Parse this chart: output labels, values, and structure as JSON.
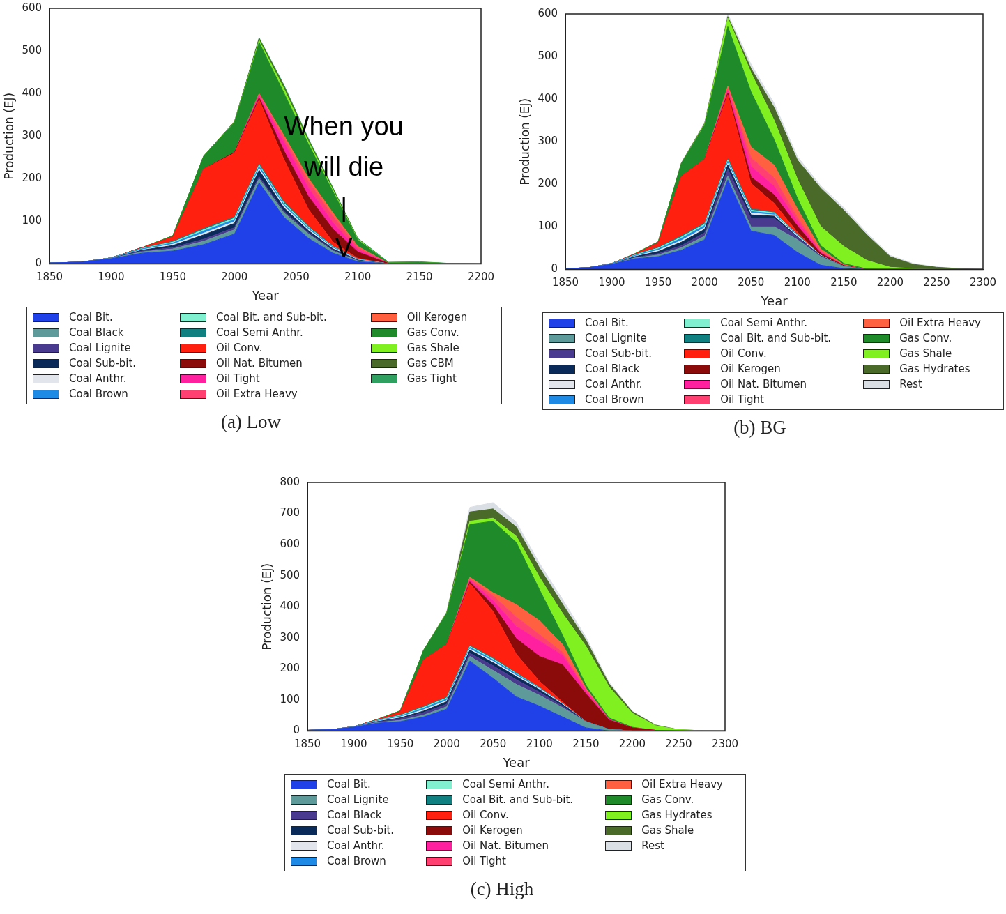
{
  "chart_data": [
    {
      "type": "area",
      "title": "(a) Low",
      "xlabel": "Year",
      "ylabel": "Production (EJ)",
      "stacked": true,
      "legend": "bottom",
      "xlim": [
        1850,
        2200
      ],
      "xticks": [
        1850,
        1900,
        1950,
        2000,
        2050,
        2100,
        2150,
        2200
      ],
      "ylim": [
        0,
        600
      ],
      "yticks": [
        0,
        100,
        200,
        300,
        400,
        500,
        600
      ],
      "annotations": [
        {
          "text": "When you\nwill die\n|\nV",
          "x": 2100,
          "y": 0
        }
      ],
      "x": [
        1850,
        1875,
        1900,
        1925,
        1950,
        1975,
        2000,
        2020,
        2040,
        2060,
        2080,
        2100,
        2125,
        2150,
        2175,
        2200
      ],
      "series": [
        {
          "name": "Coal Bit.",
          "color": "#2040e8",
          "values": [
            2,
            4,
            12,
            25,
            30,
            45,
            70,
            190,
            110,
            60,
            25,
            5,
            0,
            0,
            0,
            0
          ]
        },
        {
          "name": "Coal Black",
          "color": "#5f9a9a",
          "values": [
            0,
            0,
            1,
            3,
            5,
            8,
            10,
            10,
            10,
            10,
            5,
            2,
            0,
            0,
            0,
            0
          ]
        },
        {
          "name": "Coal Lignite",
          "color": "#4a3a8f",
          "values": [
            0,
            0,
            0,
            2,
            3,
            5,
            5,
            5,
            4,
            3,
            2,
            1,
            0,
            0,
            0,
            0
          ]
        },
        {
          "name": "Coal Sub-bit.",
          "color": "#0a2a5a",
          "values": [
            0,
            0,
            0,
            2,
            5,
            10,
            10,
            15,
            8,
            5,
            3,
            1,
            0,
            0,
            0,
            0
          ]
        },
        {
          "name": "Coal Anthr.",
          "color": "#e2e6ec",
          "values": [
            0,
            0,
            0,
            1,
            3,
            4,
            4,
            4,
            4,
            3,
            2,
            1,
            0,
            0,
            0,
            0
          ]
        },
        {
          "name": "Coal Brown",
          "color": "#1e8ae6",
          "values": [
            0,
            0,
            1,
            2,
            3,
            5,
            5,
            5,
            4,
            3,
            2,
            1,
            0,
            0,
            0,
            0
          ]
        },
        {
          "name": "Coal Bit. and Sub-bit.",
          "color": "#80f0d0",
          "values": [
            0,
            0,
            0,
            1,
            2,
            3,
            3,
            3,
            3,
            2,
            1,
            0,
            0,
            0,
            0,
            0
          ]
        },
        {
          "name": "Coal Semi Anthr.",
          "color": "#108080",
          "values": [
            0,
            0,
            0,
            1,
            2,
            3,
            3,
            3,
            3,
            2,
            1,
            0,
            0,
            0,
            0,
            0
          ]
        },
        {
          "name": "Oil Conv.",
          "color": "#ff2010",
          "values": [
            0,
            0,
            0,
            1,
            10,
            140,
            150,
            150,
            100,
            40,
            10,
            2,
            0,
            0,
            0,
            0
          ]
        },
        {
          "name": "Oil Nat. Bitumen",
          "color": "#8b0a0a",
          "values": [
            0,
            0,
            0,
            0,
            0,
            0,
            2,
            5,
            20,
            30,
            30,
            15,
            1,
            0,
            0,
            0
          ]
        },
        {
          "name": "Oil Tight",
          "color": "#ff20a0",
          "values": [
            0,
            0,
            0,
            0,
            0,
            0,
            0,
            5,
            20,
            20,
            15,
            5,
            0,
            0,
            0,
            0
          ]
        },
        {
          "name": "Oil Extra Heavy",
          "color": "#ff4070",
          "values": [
            0,
            0,
            0,
            0,
            0,
            0,
            0,
            3,
            10,
            15,
            15,
            5,
            0,
            0,
            0,
            0
          ]
        },
        {
          "name": "Oil Kerogen",
          "color": "#ff6040",
          "values": [
            0,
            0,
            0,
            0,
            0,
            0,
            0,
            2,
            6,
            8,
            8,
            3,
            0,
            0,
            0,
            0
          ]
        },
        {
          "name": "Gas Conv.",
          "color": "#1f8a2a",
          "values": [
            0,
            0,
            0,
            0,
            3,
            30,
            70,
            120,
            100,
            80,
            50,
            15,
            1,
            3,
            1,
            0
          ]
        },
        {
          "name": "Gas Shale",
          "color": "#80f020",
          "values": [
            0,
            0,
            0,
            0,
            0,
            0,
            1,
            5,
            10,
            6,
            4,
            2,
            0,
            0,
            0,
            0
          ]
        },
        {
          "name": "Gas CBM",
          "color": "#4a6a2a",
          "values": [
            0,
            0,
            0,
            0,
            0,
            0,
            1,
            4,
            6,
            4,
            3,
            1,
            0,
            0,
            0,
            0
          ]
        },
        {
          "name": "Gas Tight",
          "color": "#30a060",
          "values": [
            0,
            0,
            0,
            0,
            0,
            0,
            0,
            2,
            3,
            3,
            2,
            1,
            2,
            2,
            0,
            0
          ]
        }
      ]
    },
    {
      "type": "area",
      "title": "(b) BG",
      "xlabel": "Year",
      "ylabel": "Production (EJ)",
      "stacked": true,
      "legend": "bottom",
      "xlim": [
        1850,
        2300
      ],
      "xticks": [
        1850,
        1900,
        1950,
        2000,
        2050,
        2100,
        2150,
        2200,
        2250,
        2300
      ],
      "ylim": [
        0,
        600
      ],
      "yticks": [
        0,
        100,
        200,
        300,
        400,
        500,
        600
      ],
      "x": [
        1850,
        1875,
        1900,
        1925,
        1950,
        1975,
        2000,
        2025,
        2050,
        2075,
        2100,
        2125,
        2150,
        2175,
        2200,
        2225,
        2250,
        2275,
        2300
      ],
      "series": [
        {
          "name": "Coal Bit.",
          "color": "#2040e8",
          "values": [
            2,
            4,
            12,
            25,
            30,
            45,
            70,
            210,
            90,
            80,
            40,
            10,
            2,
            0,
            0,
            0,
            0,
            0,
            0
          ]
        },
        {
          "name": "Coal Lignite",
          "color": "#5f9a9a",
          "values": [
            0,
            0,
            1,
            2,
            4,
            6,
            8,
            10,
            10,
            20,
            30,
            20,
            5,
            0,
            0,
            0,
            0,
            0,
            0
          ]
        },
        {
          "name": "Coal Sub-bit.",
          "color": "#4a3a8f",
          "values": [
            0,
            0,
            0,
            1,
            3,
            5,
            8,
            15,
            20,
            20,
            5,
            2,
            0,
            0,
            0,
            0,
            0,
            0,
            0
          ]
        },
        {
          "name": "Coal Black",
          "color": "#0a2a5a",
          "values": [
            0,
            0,
            0,
            2,
            5,
            8,
            8,
            10,
            8,
            5,
            2,
            0,
            0,
            0,
            0,
            0,
            0,
            0,
            0
          ]
        },
        {
          "name": "Coal Anthr.",
          "color": "#e2e6ec",
          "values": [
            0,
            0,
            0,
            1,
            3,
            4,
            4,
            4,
            4,
            3,
            2,
            1,
            0,
            0,
            0,
            0,
            0,
            0,
            0
          ]
        },
        {
          "name": "Coal Brown",
          "color": "#1e8ae6",
          "values": [
            0,
            0,
            1,
            2,
            3,
            5,
            5,
            5,
            4,
            3,
            1,
            0,
            0,
            0,
            0,
            0,
            0,
            0,
            0
          ]
        },
        {
          "name": "Coal Semi Anthr.",
          "color": "#80f0d0",
          "values": [
            0,
            0,
            0,
            1,
            2,
            3,
            3,
            3,
            3,
            2,
            1,
            0,
            0,
            0,
            0,
            0,
            0,
            0,
            0
          ]
        },
        {
          "name": "Coal Bit. and Sub-bit.",
          "color": "#108080",
          "values": [
            0,
            0,
            0,
            1,
            2,
            3,
            3,
            3,
            3,
            2,
            1,
            0,
            0,
            0,
            0,
            0,
            0,
            0,
            0
          ]
        },
        {
          "name": "Oil Conv.",
          "color": "#ff2010",
          "values": [
            0,
            0,
            0,
            1,
            10,
            140,
            150,
            150,
            60,
            20,
            5,
            0,
            0,
            0,
            0,
            0,
            0,
            0,
            0
          ]
        },
        {
          "name": "Oil Kerogen",
          "color": "#8b0a0a",
          "values": [
            0,
            0,
            0,
            0,
            0,
            0,
            0,
            5,
            15,
            20,
            15,
            5,
            2,
            0,
            0,
            0,
            0,
            0,
            0
          ]
        },
        {
          "name": "Oil Nat. Bitumen",
          "color": "#ff20a0",
          "values": [
            0,
            0,
            0,
            0,
            0,
            0,
            0,
            5,
            25,
            20,
            10,
            3,
            0,
            0,
            0,
            0,
            0,
            0,
            0
          ]
        },
        {
          "name": "Oil Tight",
          "color": "#ff4070",
          "values": [
            0,
            0,
            0,
            0,
            0,
            0,
            0,
            5,
            20,
            20,
            10,
            2,
            0,
            0,
            0,
            0,
            0,
            0,
            0
          ]
        },
        {
          "name": "Oil Extra Heavy",
          "color": "#ff6040",
          "values": [
            0,
            0,
            0,
            0,
            0,
            0,
            0,
            5,
            25,
            30,
            20,
            5,
            2,
            0,
            0,
            0,
            0,
            0,
            0
          ]
        },
        {
          "name": "Gas Conv.",
          "color": "#1f8a2a",
          "values": [
            0,
            0,
            0,
            1,
            3,
            30,
            80,
            140,
            130,
            60,
            25,
            8,
            3,
            1,
            0,
            0,
            0,
            0,
            0
          ]
        },
        {
          "name": "Gas Shale",
          "color": "#80f020",
          "values": [
            0,
            0,
            0,
            0,
            0,
            0,
            2,
            20,
            45,
            45,
            45,
            45,
            40,
            20,
            5,
            2,
            0,
            0,
            0
          ]
        },
        {
          "name": "Gas Hydrates",
          "color": "#4a6a2a",
          "values": [
            0,
            0,
            0,
            0,
            0,
            1,
            2,
            4,
            10,
            30,
            45,
            90,
            85,
            60,
            25,
            10,
            5,
            2,
            0
          ]
        },
        {
          "name": "Rest",
          "color": "#dadfe6",
          "values": [
            0,
            0,
            0,
            0,
            0,
            1,
            2,
            6,
            10,
            10,
            8,
            6,
            6,
            5,
            3,
            2,
            1,
            0,
            0
          ]
        }
      ]
    },
    {
      "type": "area",
      "title": "(c) High",
      "xlabel": "Year",
      "ylabel": "Production (EJ)",
      "stacked": true,
      "legend": "bottom",
      "xlim": [
        1850,
        2300
      ],
      "xticks": [
        1850,
        1900,
        1950,
        2000,
        2050,
        2100,
        2150,
        2200,
        2250,
        2300
      ],
      "ylim": [
        0,
        800
      ],
      "yticks": [
        0,
        100,
        200,
        300,
        400,
        500,
        600,
        700,
        800
      ],
      "x": [
        1850,
        1875,
        1900,
        1925,
        1950,
        1975,
        2000,
        2025,
        2050,
        2075,
        2100,
        2125,
        2150,
        2175,
        2200,
        2225,
        2250,
        2275,
        2300
      ],
      "series": [
        {
          "name": "Coal Bit.",
          "color": "#2040e8",
          "values": [
            2,
            4,
            12,
            25,
            30,
            45,
            70,
            225,
            170,
            110,
            80,
            45,
            10,
            0,
            0,
            0,
            0,
            0,
            0
          ]
        },
        {
          "name": "Coal Lignite",
          "color": "#5f9a9a",
          "values": [
            0,
            0,
            1,
            2,
            4,
            6,
            8,
            15,
            25,
            40,
            35,
            30,
            20,
            5,
            0,
            0,
            0,
            0,
            0
          ]
        },
        {
          "name": "Coal Black",
          "color": "#4a3a8f",
          "values": [
            0,
            0,
            0,
            2,
            5,
            8,
            8,
            10,
            15,
            15,
            10,
            5,
            0,
            0,
            0,
            0,
            0,
            0,
            0
          ]
        },
        {
          "name": "Coal Sub-bit.",
          "color": "#0a2a5a",
          "values": [
            0,
            0,
            0,
            1,
            3,
            5,
            8,
            10,
            10,
            10,
            8,
            5,
            0,
            0,
            0,
            0,
            0,
            0,
            0
          ]
        },
        {
          "name": "Coal Anthr.",
          "color": "#e2e6ec",
          "values": [
            0,
            0,
            0,
            1,
            3,
            4,
            4,
            4,
            4,
            4,
            3,
            2,
            0,
            0,
            0,
            0,
            0,
            0,
            0
          ]
        },
        {
          "name": "Coal Brown",
          "color": "#1e8ae6",
          "values": [
            0,
            0,
            1,
            2,
            3,
            5,
            5,
            5,
            5,
            4,
            2,
            1,
            0,
            0,
            0,
            0,
            0,
            0,
            0
          ]
        },
        {
          "name": "Coal Semi Anthr.",
          "color": "#80f0d0",
          "values": [
            0,
            0,
            0,
            1,
            2,
            3,
            3,
            3,
            3,
            2,
            1,
            0,
            0,
            0,
            0,
            0,
            0,
            0,
            0
          ]
        },
        {
          "name": "Coal Bit. and Sub-bit.",
          "color": "#108080",
          "values": [
            0,
            0,
            0,
            1,
            2,
            3,
            3,
            3,
            3,
            2,
            1,
            0,
            0,
            0,
            0,
            0,
            0,
            0,
            0
          ]
        },
        {
          "name": "Oil Conv.",
          "color": "#ff2010",
          "values": [
            0,
            0,
            0,
            1,
            10,
            150,
            170,
            200,
            150,
            60,
            20,
            5,
            0,
            0,
            0,
            0,
            0,
            0,
            0
          ]
        },
        {
          "name": "Oil Kerogen",
          "color": "#8b0a0a",
          "values": [
            0,
            0,
            0,
            0,
            0,
            0,
            0,
            5,
            20,
            50,
            80,
            120,
            90,
            30,
            10,
            2,
            0,
            0,
            0
          ]
        },
        {
          "name": "Oil Nat. Bitumen",
          "color": "#ff20a0",
          "values": [
            0,
            0,
            0,
            0,
            0,
            0,
            0,
            5,
            15,
            40,
            50,
            30,
            10,
            2,
            0,
            0,
            0,
            0,
            0
          ]
        },
        {
          "name": "Oil Tight",
          "color": "#ff4070",
          "values": [
            0,
            0,
            0,
            0,
            0,
            0,
            0,
            5,
            15,
            30,
            20,
            10,
            3,
            0,
            0,
            0,
            0,
            0,
            0
          ]
        },
        {
          "name": "Oil Extra Heavy",
          "color": "#ff6040",
          "values": [
            0,
            0,
            0,
            0,
            0,
            0,
            0,
            5,
            10,
            40,
            45,
            25,
            5,
            0,
            0,
            0,
            0,
            0,
            0
          ]
        },
        {
          "name": "Gas Conv.",
          "color": "#1f8a2a",
          "values": [
            0,
            0,
            0,
            1,
            3,
            30,
            100,
            170,
            230,
            200,
            100,
            30,
            10,
            5,
            2,
            0,
            0,
            0,
            0
          ]
        },
        {
          "name": "Gas Hydrates",
          "color": "#80f020",
          "values": [
            0,
            0,
            0,
            0,
            0,
            0,
            2,
            10,
            10,
            20,
            40,
            70,
            125,
            100,
            45,
            15,
            4,
            1,
            0
          ]
        },
        {
          "name": "Gas Shale",
          "color": "#4a6a2a",
          "values": [
            0,
            0,
            0,
            0,
            0,
            0,
            0,
            30,
            30,
            30,
            30,
            30,
            20,
            10,
            5,
            2,
            0,
            0,
            0
          ]
        },
        {
          "name": "Rest",
          "color": "#dadfe6",
          "values": [
            0,
            0,
            0,
            0,
            0,
            1,
            2,
            15,
            20,
            15,
            15,
            15,
            10,
            5,
            2,
            1,
            0,
            0,
            0
          ]
        }
      ]
    }
  ]
}
